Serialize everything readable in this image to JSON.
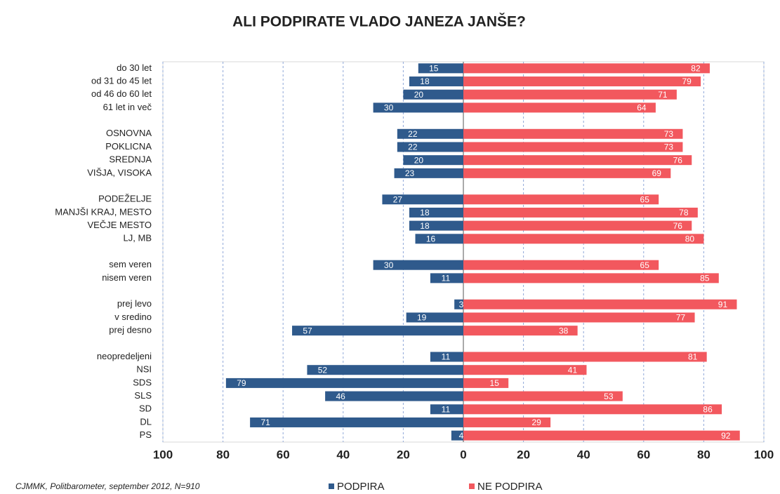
{
  "chart_data": {
    "type": "diverging-bar",
    "title": "ALI PODPIRATE VLADO JANEZA JANŠE?",
    "source": "CJMMK, Politbarometer, september 2012, N=910",
    "categories": [
      "do 30 let",
      "od 31 do 45 let",
      "od 46 do 60 let",
      "61 let in več",
      null,
      "OSNOVNA",
      "POKLICNA",
      "SREDNJA",
      "VIŠJA, VISOKA",
      null,
      "PODEŽELJE",
      "MANJŠI KRAJ, MESTO",
      "VEČJE MESTO",
      "LJ, MB",
      null,
      "sem veren",
      "nisem veren",
      null,
      "prej levo",
      "v sredino",
      "prej desno",
      null,
      "neopredeljeni",
      "NSI",
      "SDS",
      "SLS",
      "SD",
      "DL",
      "PS"
    ],
    "series": [
      {
        "name": "PODPIRA",
        "color": "#2f5a8c",
        "values": [
          -15,
          -18,
          -20,
          -30,
          null,
          -22,
          -22,
          -20,
          -23,
          null,
          -27,
          -18,
          -18,
          -16,
          null,
          -30,
          -11,
          null,
          -3,
          -19,
          -57,
          null,
          -11,
          -52,
          -79,
          -46,
          -11,
          -71,
          -4
        ],
        "value_labels": [
          "15",
          "18",
          "20",
          "30",
          null,
          "22",
          "22",
          "20",
          "23",
          null,
          "27",
          "18",
          "18",
          "16",
          null,
          "30",
          "11",
          null,
          "3",
          "19",
          "57",
          null,
          "11",
          "52",
          "79",
          "46",
          "11",
          "71",
          "4"
        ]
      },
      {
        "name": "NE PODPIRA",
        "color": "#f2585e",
        "values": [
          82,
          79,
          71,
          64,
          null,
          73,
          73,
          76,
          69,
          null,
          65,
          78,
          76,
          80,
          null,
          65,
          85,
          null,
          91,
          77,
          38,
          null,
          81,
          41,
          15,
          53,
          86,
          29,
          92
        ]
      }
    ],
    "xlim": [
      -100,
      100
    ],
    "xticks": [
      {
        "value": -100,
        "label": "100"
      },
      {
        "value": -80,
        "label": "80"
      },
      {
        "value": -60,
        "label": "60"
      },
      {
        "value": -40,
        "label": "40"
      },
      {
        "value": -20,
        "label": "20"
      },
      0,
      20,
      40,
      60,
      80,
      100
    ],
    "grid": true
  }
}
